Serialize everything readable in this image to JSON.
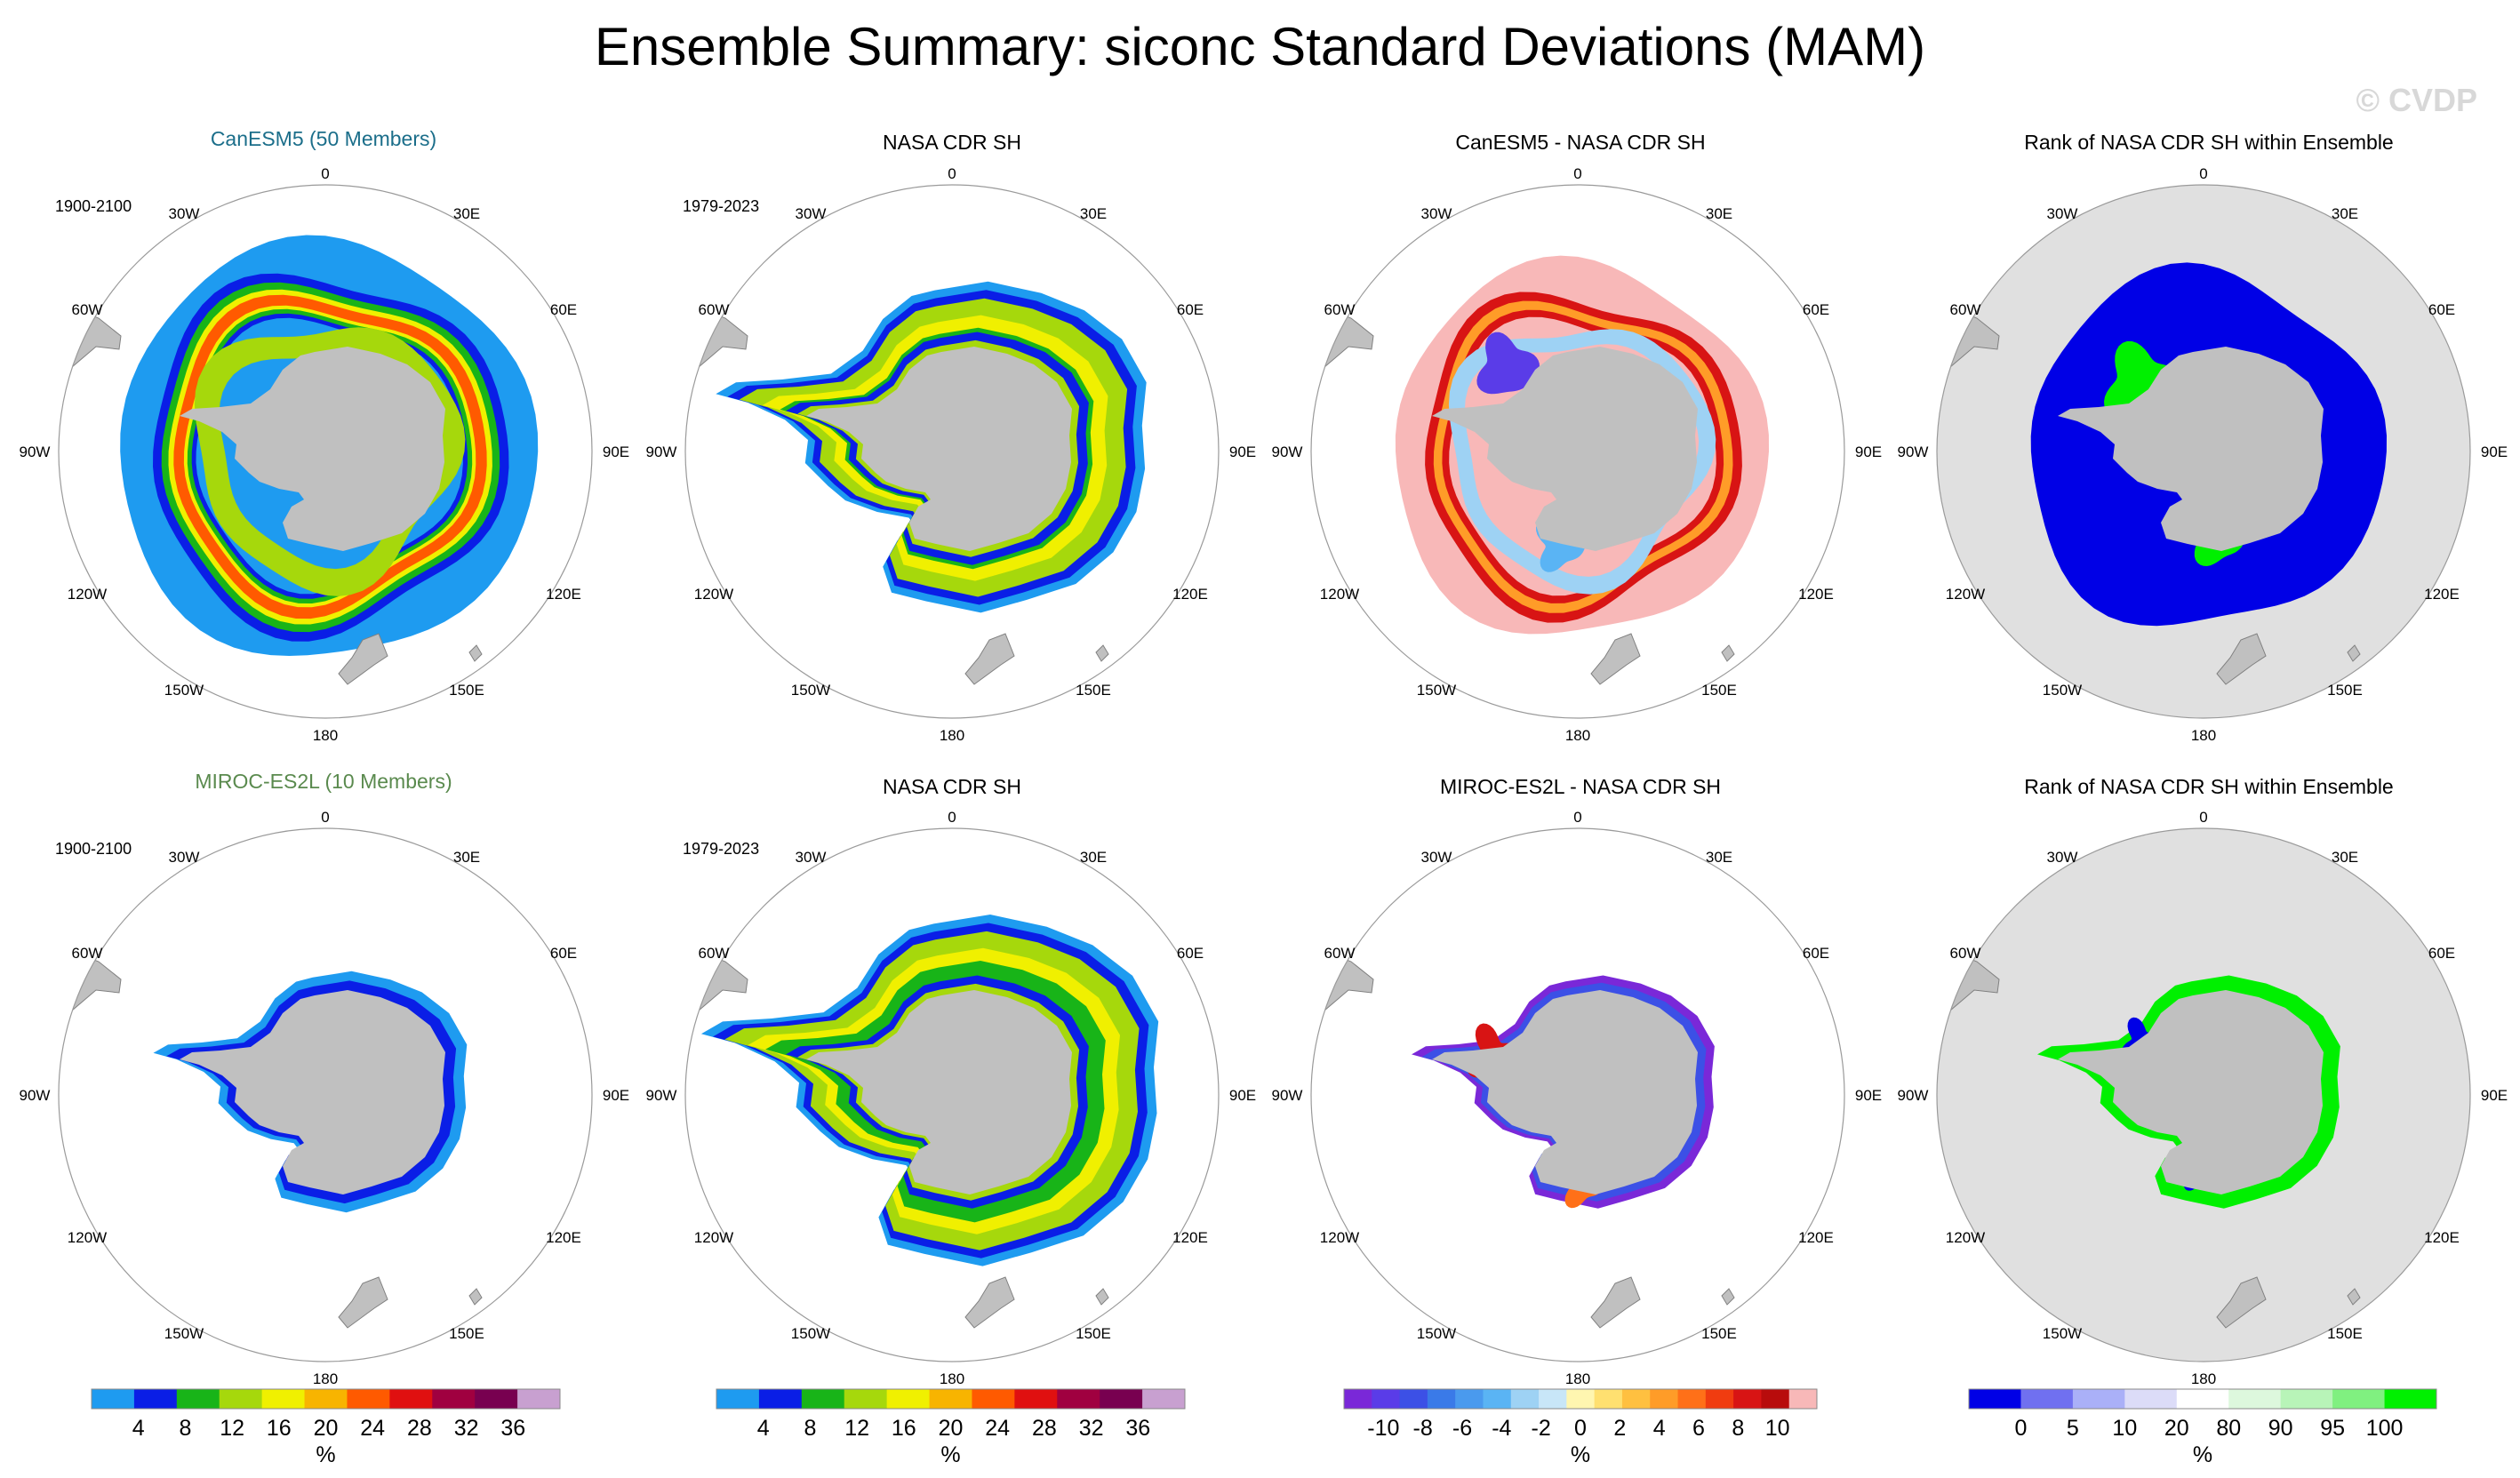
{
  "title": "Ensemble Summary: siconc Standard Deviations (MAM)",
  "watermark": "© CVDP",
  "lon_labels": [
    "0",
    "30E",
    "60E",
    "90E",
    "120E",
    "150E",
    "180",
    "150W",
    "120W",
    "90W",
    "60W",
    "30W"
  ],
  "rows": [
    {
      "model": "CanESM5 (50 Members)",
      "panels": [
        {
          "title": "CanESM5 (50 Members)",
          "period": "1900-2100",
          "kind": "std_model"
        },
        {
          "title": "NASA CDR SH",
          "period": "1979-2023",
          "kind": "std_obs"
        },
        {
          "title": "CanESM5 - NASA CDR SH",
          "period": "",
          "kind": "diff"
        },
        {
          "title": "Rank of NASA CDR SH within Ensemble",
          "period": "",
          "kind": "rank"
        }
      ]
    },
    {
      "model": "MIROC-ES2L (10 Members)",
      "panels": [
        {
          "title": "MIROC-ES2L (10 Members)",
          "period": "1900-2100",
          "kind": "std_model"
        },
        {
          "title": "NASA CDR SH",
          "period": "1979-2023",
          "kind": "std_obs"
        },
        {
          "title": "MIROC-ES2L - NASA CDR SH",
          "period": "",
          "kind": "diff"
        },
        {
          "title": "Rank of NASA CDR SH within Ensemble",
          "period": "",
          "kind": "rank"
        }
      ]
    }
  ],
  "colorbars": [
    {
      "name": "std-colorbar-1",
      "unit": "%",
      "labels": [
        "4",
        "8",
        "12",
        "16",
        "20",
        "24",
        "28",
        "32",
        "36"
      ],
      "colors": [
        "#1e9bf0",
        "#0a1ee6",
        "#18b418",
        "#a6d80c",
        "#f0f000",
        "#f8b400",
        "#ff5a00",
        "#e01010",
        "#a00040",
        "#780050",
        "#c8a0d0"
      ]
    },
    {
      "name": "std-colorbar-2",
      "unit": "%",
      "labels": [
        "4",
        "8",
        "12",
        "16",
        "20",
        "24",
        "28",
        "32",
        "36"
      ],
      "colors": [
        "#1e9bf0",
        "#0a1ee6",
        "#18b418",
        "#a6d80c",
        "#f0f000",
        "#f8b400",
        "#ff5a00",
        "#e01010",
        "#a00040",
        "#780050",
        "#c8a0d0"
      ]
    },
    {
      "name": "diff-colorbar",
      "unit": "%",
      "labels": [
        "-10",
        "-8",
        "-6",
        "-4",
        "-2",
        "0",
        "2",
        "4",
        "6",
        "8",
        "10"
      ],
      "colors": [
        "#7a28d8",
        "#5a3ce8",
        "#3c50e6",
        "#3a7ae8",
        "#4a9aee",
        "#5ab4f4",
        "#9ed2f4",
        "#c8e6f8",
        "#fff6b0",
        "#ffe070",
        "#ffc040",
        "#ff9c28",
        "#ff7018",
        "#f03c10",
        "#d81414",
        "#b80c0c",
        "#f8b8b8"
      ]
    },
    {
      "name": "rank-colorbar",
      "unit": "%",
      "labels": [
        "0",
        "5",
        "10",
        "20",
        "80",
        "90",
        "95",
        "100"
      ],
      "colors": [
        "#0000e6",
        "#7070f0",
        "#aab0f8",
        "#dcdcf8",
        "#ffffff",
        "#ddf8dd",
        "#b8f4b8",
        "#80f080",
        "#00f000"
      ]
    }
  ],
  "colors": {
    "land": "#c0c0c0",
    "map_bg": "#ffffff",
    "rank_bg": "#e0e0e0"
  }
}
